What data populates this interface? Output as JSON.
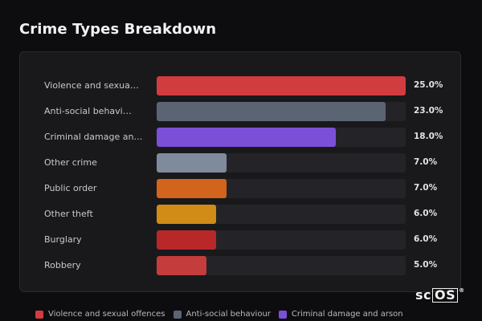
{
  "title": "Crime Types Breakdown",
  "chart_data": {
    "type": "bar",
    "orientation": "horizontal",
    "categories": [
      "Violence and sexua…",
      "Anti-social behavi…",
      "Criminal damage an…",
      "Other crime",
      "Public order",
      "Other theft",
      "Burglary",
      "Robbery"
    ],
    "values": [
      25.0,
      23.0,
      18.0,
      7.0,
      7.0,
      6.0,
      6.0,
      5.0
    ],
    "value_labels": [
      "25.0%",
      "23.0%",
      "18.0%",
      "7.0%",
      "7.0%",
      "6.0%",
      "6.0%",
      "5.0%"
    ],
    "colors": [
      "#d13c3f",
      "#5b6473",
      "#7c4fd8",
      "#7f8b9c",
      "#d3641d",
      "#d08c16",
      "#b82828",
      "#c43c3c"
    ],
    "xlim": [
      0,
      25
    ],
    "legend_position": "bottom"
  },
  "legend": [
    {
      "label": "Violence and sexual offences",
      "color": "#d13c3f"
    },
    {
      "label": "Anti-social behaviour",
      "color": "#5b6473"
    },
    {
      "label": "Criminal damage and arson",
      "color": "#7c4fd8"
    }
  ],
  "logo": {
    "prefix": "sc",
    "boxed": "OS",
    "mark": "®"
  }
}
